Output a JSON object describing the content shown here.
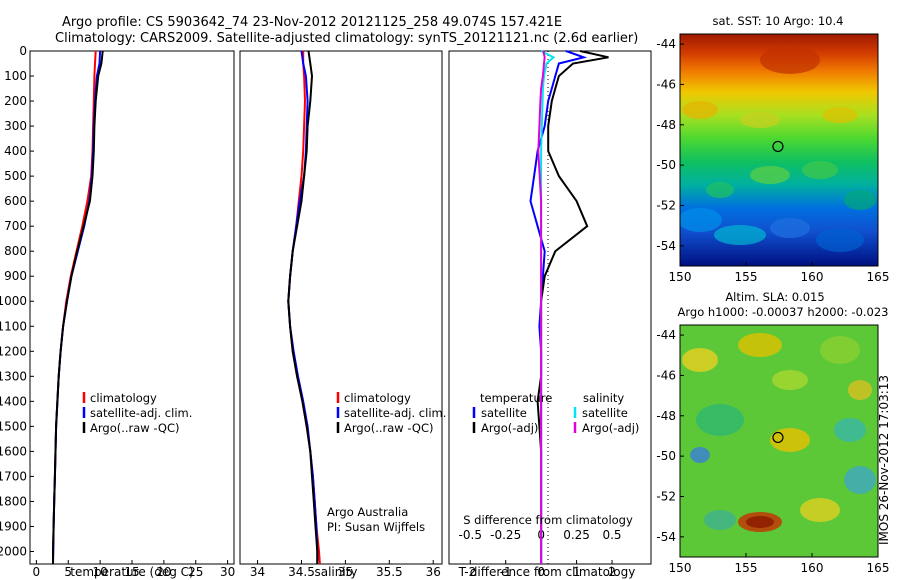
{
  "title": {
    "line1": "Argo profile: CS 5903642_74 23-Nov-2012 20121125_258 49.074S 157.421E",
    "line2": "Climatology: CARS2009. Satellite-adjusted climatology: synTS_20121121.nc (2.6d earlier)"
  },
  "colors": {
    "climatology": "#ff0000",
    "satellite": "#0000ff",
    "argo": "#000000",
    "sat_salinity": "#00e5ee",
    "argo_salinity": "#e000e0"
  },
  "chart_data": [
    {
      "type": "line",
      "name": "temperature-panel",
      "xlabel": "temperature (deg C)",
      "ylabel": "",
      "xlim": [
        -1,
        31
      ],
      "ylim": [
        2050,
        0
      ],
      "xticks": [
        "0",
        "5",
        "10",
        "15",
        "20",
        "25",
        "30"
      ],
      "yticks": [
        "0",
        "100",
        "200",
        "300",
        "400",
        "500",
        "600",
        "700",
        "800",
        "900",
        "1000",
        "1100",
        "1200",
        "1300",
        "1400",
        "1500",
        "1600",
        "1700",
        "1800",
        "1900",
        "2000"
      ],
      "legend": [
        "climatology",
        "satellite-adj. clim.",
        "Argo(..raw -QC)"
      ],
      "depth": [
        0,
        50,
        100,
        200,
        300,
        400,
        500,
        600,
        700,
        800,
        900,
        1000,
        1100,
        1200,
        1300,
        1400,
        1500,
        1600,
        1700,
        1800,
        1900,
        2000,
        2050
      ],
      "series": [
        {
          "name": "climatology",
          "values": [
            9.3,
            9.2,
            9.1,
            9.0,
            8.9,
            8.8,
            8.6,
            8.0,
            7.2,
            6.3,
            5.4,
            4.7,
            4.2,
            3.8,
            3.5,
            3.3,
            3.1,
            3.0,
            2.9,
            2.8,
            2.7,
            2.6,
            2.6
          ]
        },
        {
          "name": "satellite",
          "values": [
            10.0,
            9.9,
            9.5,
            9.2,
            9.0,
            8.9,
            8.7,
            8.3,
            7.5,
            6.5,
            5.5,
            4.8,
            4.2,
            3.8,
            3.5,
            3.3,
            3.1,
            3.0,
            2.9,
            2.8,
            2.7,
            2.65,
            2.6
          ]
        },
        {
          "name": "argo",
          "values": [
            10.4,
            10.2,
            9.7,
            9.3,
            9.1,
            9.0,
            8.8,
            8.4,
            7.4,
            6.4,
            5.5,
            4.8,
            4.2,
            3.8,
            3.5,
            3.3,
            3.1,
            3.0,
            2.9,
            2.8,
            2.7,
            2.6,
            2.6
          ]
        }
      ]
    },
    {
      "type": "line",
      "name": "salinity-panel",
      "xlabel": "salinity",
      "xlim": [
        33.8,
        36.1
      ],
      "ylim": [
        2050,
        0
      ],
      "xticks": [
        "34",
        "34.5",
        "35",
        "35.5",
        "36"
      ],
      "legend": [
        "climatology",
        "satellite-adj. clim.",
        "Argo(..raw -QC)"
      ],
      "annotation": [
        "Argo Australia",
        "PI: Susan Wijffels"
      ],
      "depth": [
        0,
        50,
        100,
        200,
        300,
        400,
        500,
        600,
        700,
        800,
        900,
        1000,
        1100,
        1200,
        1300,
        1400,
        1500,
        1600,
        1700,
        1800,
        1900,
        2000,
        2050
      ],
      "series": [
        {
          "name": "climatology",
          "values": [
            34.52,
            34.52,
            34.53,
            34.54,
            34.53,
            34.52,
            34.5,
            34.47,
            34.44,
            34.4,
            34.37,
            34.35,
            34.37,
            34.4,
            34.45,
            34.51,
            34.56,
            34.6,
            34.63,
            34.65,
            34.67,
            34.7,
            34.71
          ]
        },
        {
          "name": "satellite",
          "values": [
            34.5,
            34.52,
            34.55,
            34.57,
            34.56,
            34.55,
            34.53,
            34.48,
            34.44,
            34.4,
            34.37,
            34.35,
            34.37,
            34.41,
            34.46,
            34.52,
            34.57,
            34.6,
            34.63,
            34.65,
            34.67,
            34.68,
            34.68
          ]
        },
        {
          "name": "argo",
          "values": [
            34.58,
            34.6,
            34.62,
            34.6,
            34.57,
            34.56,
            34.53,
            34.5,
            34.45,
            34.4,
            34.37,
            34.35,
            34.37,
            34.4,
            34.45,
            34.51,
            34.56,
            34.6,
            34.62,
            34.64,
            34.66,
            34.68,
            34.68
          ]
        }
      ]
    },
    {
      "type": "line",
      "name": "difference-panel",
      "xlabel": "T difference from climatology",
      "xlabel_top": "S difference from climatology",
      "xlim": [
        -2.6,
        3.1
      ],
      "ylim": [
        2050,
        0
      ],
      "xticks": [
        "-2",
        "-1",
        "0",
        "1",
        "2"
      ],
      "xticks_s": [
        "-0.5",
        "-0.25",
        "0",
        "0.25",
        "0.5"
      ],
      "legend_headers": [
        "temperature",
        "salinity"
      ],
      "legend": [
        "satellite",
        "Argo(-adj)",
        "satellite",
        "Argo(-adj)"
      ],
      "depth": [
        0,
        25,
        50,
        100,
        150,
        200,
        300,
        400,
        500,
        600,
        700,
        800,
        900,
        1000,
        1100,
        1200,
        1300,
        1400,
        1500,
        1600,
        1700,
        1800,
        1900,
        2000,
        2050
      ],
      "series": [
        {
          "name": "temperature satellite",
          "values": [
            0.7,
            1.2,
            0.5,
            0.4,
            0.3,
            0.2,
            0.1,
            -0.1,
            -0.2,
            -0.3,
            -0.1,
            0.1,
            0.05,
            0.0,
            -0.05,
            0.0,
            0.0,
            0.0,
            0.0,
            0.0,
            0.0,
            0.0,
            0.0,
            0.0,
            0.0
          ]
        },
        {
          "name": "temperature Argo(-adj)",
          "values": [
            1.1,
            1.9,
            0.9,
            0.5,
            0.4,
            0.3,
            0.2,
            0.2,
            0.5,
            1.0,
            1.3,
            0.4,
            0.1,
            0.0,
            0.0,
            0.0,
            0.0,
            -0.1,
            -0.05,
            0.0,
            0.0,
            0.0,
            0.0,
            0.0,
            0.0
          ]
        },
        {
          "name": "salinity satellite",
          "values": [
            0.0,
            0.35,
            0.15,
            0.08,
            0.05,
            0.04,
            0.02,
            0.0,
            0.0,
            0.0,
            0.0,
            0.0,
            0.0,
            0.0,
            0.0,
            0.0,
            0.0,
            0.0,
            0.0,
            0.0,
            0.0,
            0.0,
            0.0,
            0.0,
            0.0
          ]
        },
        {
          "name": "salinity Argo(-adj)",
          "values": [
            0.06,
            0.1,
            0.08,
            0.05,
            0.0,
            -0.02,
            -0.05,
            -0.08,
            -0.04,
            0.0,
            0.0,
            0.0,
            0.0,
            0.0,
            0.0,
            0.0,
            0.0,
            0.0,
            0.0,
            0.0,
            0.0,
            0.0,
            0.0,
            0.0,
            0.0
          ]
        }
      ]
    },
    {
      "type": "heatmap",
      "name": "sst-map",
      "title": "sat. SST: 10  Argo: 10.4",
      "xlim": [
        150,
        165
      ],
      "ylim": [
        -55,
        -43.5
      ],
      "xticks": [
        "150",
        "155",
        "160",
        "165"
      ],
      "yticks": [
        "-44",
        "-46",
        "-48",
        "-50",
        "-52",
        "-54"
      ],
      "marker": {
        "lon": 157.421,
        "lat": -49.074
      }
    },
    {
      "type": "heatmap",
      "name": "sla-map",
      "title_line1": "Altim. SLA: 0.015",
      "title_line2": "Argo h1000: -0.00037  h2000: -0.023",
      "xlim": [
        150,
        165
      ],
      "ylim": [
        -55,
        -43.5
      ],
      "xticks": [
        "150",
        "155",
        "160",
        "165"
      ],
      "yticks": [
        "-44",
        "-46",
        "-48",
        "-50",
        "-52",
        "-54"
      ],
      "marker": {
        "lon": 157.421,
        "lat": -49.074
      }
    }
  ],
  "stamp": "IMOS 26-Nov-2012 17:03:13"
}
